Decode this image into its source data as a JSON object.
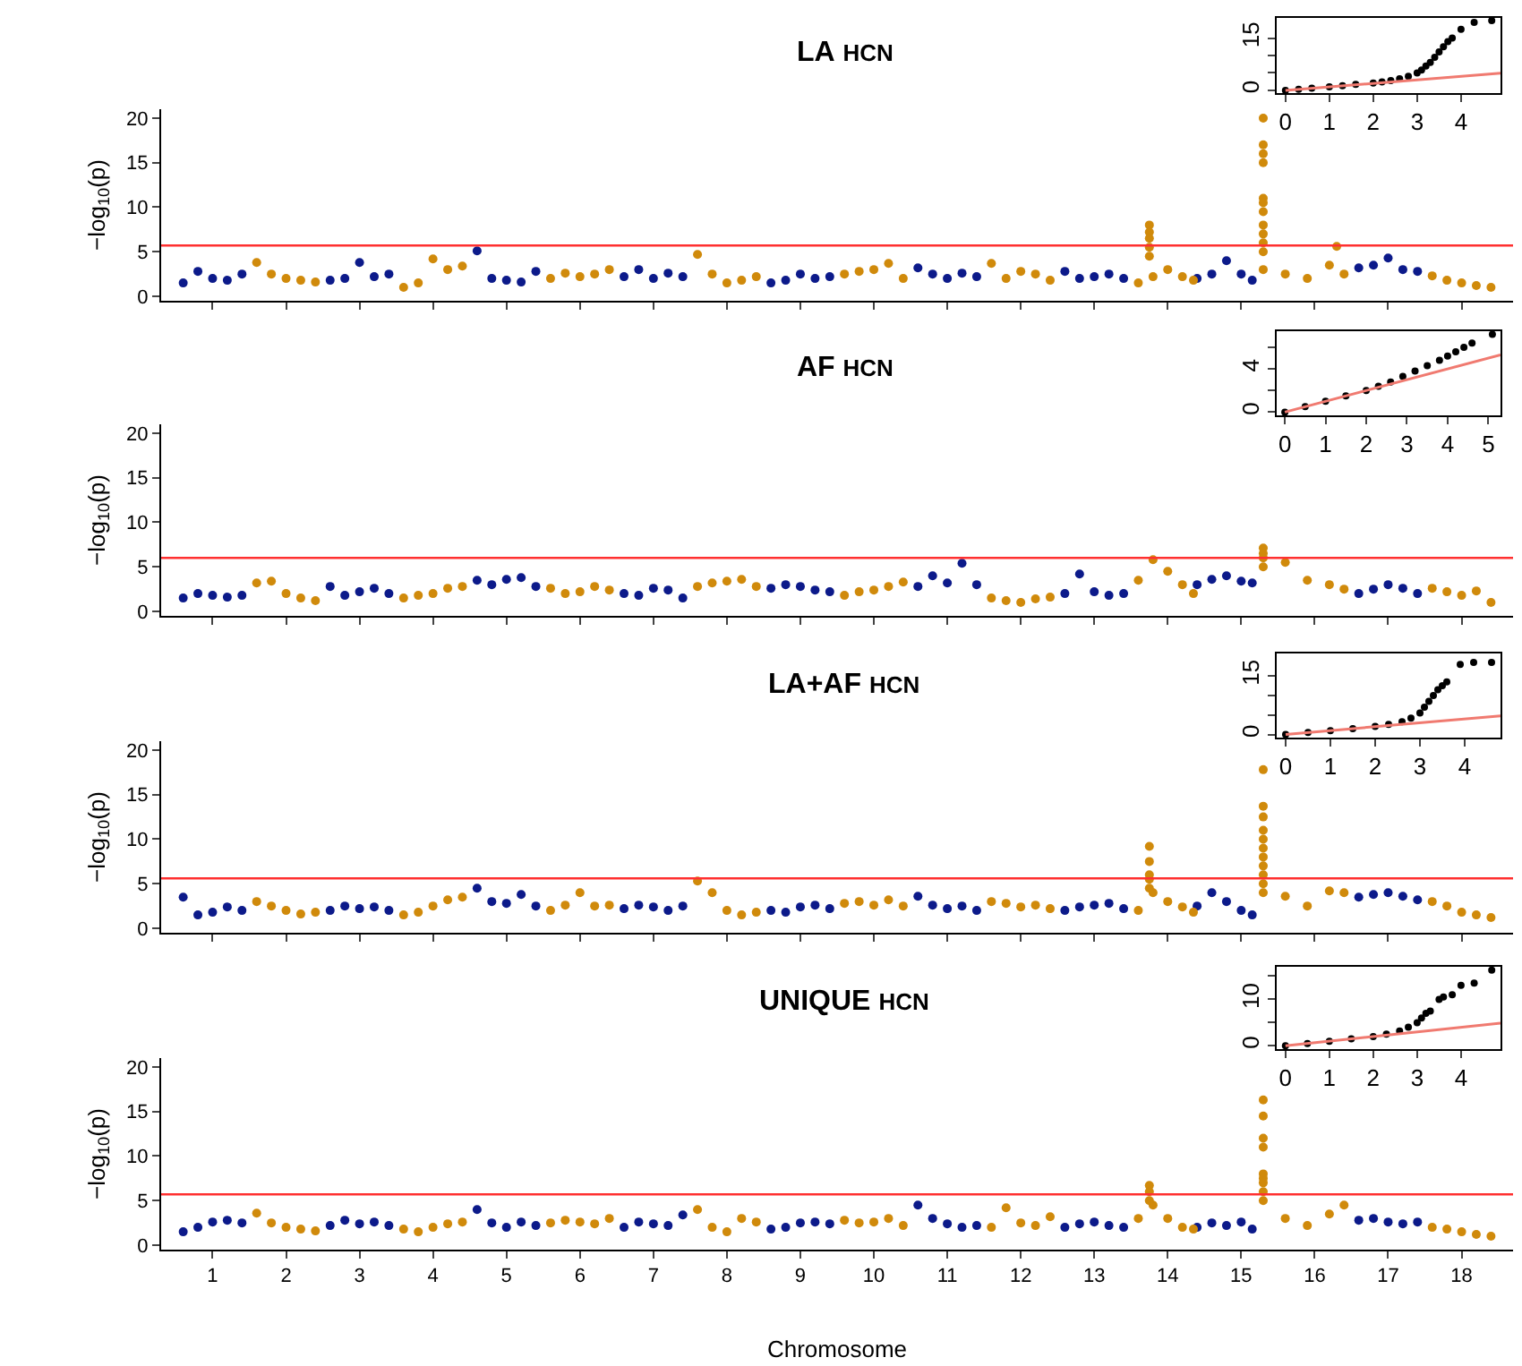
{
  "chart_data": [
    {
      "type": "scatter",
      "title": "LA HCN",
      "ylabel": "−log$_{10}$(p)",
      "xlim": [
        0.3,
        18.7
      ],
      "ylim": [
        -0.5,
        21
      ],
      "yticks": [
        0,
        5,
        10,
        15,
        20
      ],
      "xticks": [
        1,
        2,
        3,
        4,
        5,
        6,
        7,
        8,
        9,
        10,
        11,
        12,
        13,
        14,
        15,
        16,
        17,
        18
      ],
      "tick_labels": "y",
      "marker": "circle",
      "ref_lines": [
        {
          "axis": "y",
          "value": 5.7,
          "color": "#ff3030"
        }
      ],
      "series": [
        {
          "color": "#0c1a8a",
          "x": [
            0.6,
            0.8,
            1,
            1.2,
            1.4,
            2.6,
            2.8,
            3,
            3.2,
            3.4,
            4.6,
            4.8,
            5,
            5.2,
            5.4,
            6.6,
            6.8,
            7,
            7.2,
            7.4,
            8.6,
            8.8,
            9,
            9.2,
            9.4,
            10.6,
            10.8,
            11,
            11.2,
            11.4,
            12.6,
            12.8,
            13,
            13.2,
            13.4,
            14.4,
            14.6,
            14.8,
            15,
            15.15,
            16.6,
            16.8,
            17,
            17.2,
            17.4
          ],
          "values": [
            1.5,
            2.8,
            2.0,
            1.8,
            2.5,
            1.8,
            2.0,
            3.8,
            2.2,
            2.5,
            5.1,
            2.0,
            1.8,
            1.6,
            2.8,
            2.2,
            3.0,
            2.0,
            2.6,
            2.2,
            1.5,
            1.8,
            2.5,
            2.0,
            2.2,
            3.2,
            2.5,
            2.0,
            2.6,
            2.2,
            2.8,
            2.0,
            2.2,
            2.5,
            2.0,
            2.0,
            2.5,
            4.0,
            2.5,
            1.8,
            3.2,
            3.5,
            4.3,
            3.0,
            2.8
          ]
        },
        {
          "color": "#d08a0b",
          "x": [
            1.6,
            1.8,
            2,
            2.2,
            2.4,
            3.6,
            3.8,
            4,
            4.2,
            4.4,
            5.6,
            5.8,
            6,
            6.2,
            6.4,
            7.6,
            7.8,
            8,
            8.2,
            8.4,
            9.6,
            9.8,
            10,
            10.2,
            10.4,
            11.6,
            11.8,
            12,
            12.2,
            12.4,
            13.6,
            13.8,
            14,
            14.2,
            14.35,
            15.3,
            15.6,
            15.9,
            16.2,
            16.4,
            17.6,
            17.8,
            18,
            18.2,
            18.4,
            13.75,
            13.75,
            13.75,
            13.75,
            13.75,
            15.3,
            15.3,
            15.3,
            15.3,
            15.3,
            15.3,
            15.3,
            15.3,
            15.3,
            15.3,
            15.3,
            16.3
          ],
          "values": [
            3.8,
            2.5,
            2.0,
            1.8,
            1.6,
            1.0,
            1.5,
            4.2,
            3.0,
            3.4,
            2.0,
            2.6,
            2.2,
            2.5,
            3.0,
            4.7,
            2.5,
            1.5,
            1.8,
            2.2,
            2.5,
            2.8,
            3.0,
            3.7,
            2.0,
            3.7,
            2.0,
            2.8,
            2.5,
            1.8,
            1.5,
            2.2,
            3.0,
            2.2,
            1.8,
            3.0,
            2.5,
            2.0,
            3.5,
            2.5,
            2.3,
            1.8,
            1.5,
            1.2,
            1.0,
            8.0,
            7.2,
            6.5,
            5.5,
            4.5,
            20,
            17,
            16,
            15,
            11,
            10.5,
            9.5,
            8,
            7,
            6,
            5,
            5.6
          ]
        }
      ]
    },
    {
      "type": "scatter",
      "xlim": [
        -0.2,
        4.9
      ],
      "ylim": [
        -0.8,
        20.8
      ],
      "xticks": [
        0,
        1,
        2,
        3,
        4
      ],
      "yticks": [
        0,
        {
          "value": 5,
          "label": null
        },
        {
          "value": 10,
          "label": null
        },
        15
      ],
      "series": [
        {
          "color": "#000000",
          "marker": "circle",
          "x": [
            0,
            0.3,
            0.6,
            1,
            1.3,
            1.6,
            2,
            2.2,
            2.4,
            2.6,
            2.8,
            3,
            3.1,
            3.2,
            3.3,
            3.4,
            3.5,
            3.6,
            3.7,
            3.8,
            4.0,
            4.3,
            4.7
          ],
          "values": [
            0,
            0.3,
            0.6,
            1,
            1.3,
            1.7,
            2.1,
            2.4,
            2.8,
            3.3,
            4,
            5,
            5.8,
            7,
            8,
            9.5,
            11,
            12.5,
            14,
            15,
            17.5,
            19.5,
            20
          ]
        },
        {
          "type": "line",
          "color": "#f07a70",
          "marker": "none",
          "line_style": "solid",
          "x": [
            0,
            4.9
          ],
          "values": [
            0,
            4.9
          ]
        }
      ]
    },
    {
      "type": "scatter",
      "title": "AF HCN",
      "ylabel": "−log$_{10}$(p)",
      "xlim": [
        0.3,
        18.7
      ],
      "ylim": [
        -0.5,
        21
      ],
      "yticks": [
        0,
        5,
        10,
        15,
        20
      ],
      "xticks": [
        1,
        2,
        3,
        4,
        5,
        6,
        7,
        8,
        9,
        10,
        11,
        12,
        13,
        14,
        15,
        16,
        17,
        18
      ],
      "tick_labels": "y",
      "marker": "circle",
      "ref_lines": [
        {
          "axis": "y",
          "value": 6.0,
          "color": "#ff3030"
        }
      ],
      "series": [
        {
          "color": "#0c1a8a",
          "x": [
            0.6,
            0.8,
            1,
            1.2,
            1.4,
            2.6,
            2.8,
            3,
            3.2,
            3.4,
            4.6,
            4.8,
            5,
            5.2,
            5.4,
            6.6,
            6.8,
            7,
            7.2,
            7.4,
            8.6,
            8.8,
            9,
            9.2,
            9.4,
            10.6,
            10.8,
            11,
            11.2,
            11.4,
            12.6,
            12.8,
            13,
            13.2,
            13.4,
            14.4,
            14.6,
            14.8,
            15,
            15.15,
            16.6,
            16.8,
            17,
            17.2,
            17.4
          ],
          "values": [
            1.5,
            2.0,
            1.8,
            1.6,
            1.8,
            2.8,
            1.8,
            2.2,
            2.6,
            2.0,
            3.5,
            3.0,
            3.6,
            3.8,
            2.8,
            2.0,
            1.8,
            2.6,
            2.4,
            1.5,
            2.6,
            3.0,
            2.8,
            2.4,
            2.2,
            2.8,
            4.0,
            3.2,
            5.4,
            3.0,
            2.0,
            4.2,
            2.2,
            1.8,
            2.0,
            3.0,
            3.6,
            4.0,
            3.4,
            3.2,
            2.0,
            2.5,
            3.0,
            2.6,
            2.0
          ]
        },
        {
          "color": "#d08a0b",
          "x": [
            1.6,
            1.8,
            2,
            2.2,
            2.4,
            3.6,
            3.8,
            4,
            4.2,
            4.4,
            5.6,
            5.8,
            6,
            6.2,
            6.4,
            7.6,
            7.8,
            8,
            8.2,
            8.4,
            9.6,
            9.8,
            10,
            10.2,
            10.4,
            11.6,
            11.8,
            12,
            12.2,
            12.4,
            13.6,
            13.8,
            14,
            14.2,
            14.35,
            15.3,
            15.6,
            15.9,
            16.2,
            16.4,
            17.6,
            17.8,
            18,
            18.2,
            18.4,
            15.3,
            15.3,
            15.3
          ],
          "values": [
            3.2,
            3.4,
            2.0,
            1.5,
            1.2,
            1.5,
            1.8,
            2.0,
            2.6,
            2.8,
            2.6,
            2.0,
            2.2,
            2.8,
            2.4,
            2.8,
            3.2,
            3.4,
            3.6,
            2.8,
            1.8,
            2.2,
            2.4,
            2.8,
            3.3,
            1.5,
            1.2,
            1.0,
            1.4,
            1.6,
            3.5,
            5.8,
            4.5,
            3.0,
            2.0,
            7.1,
            5.5,
            3.5,
            3.0,
            2.5,
            2.6,
            2.2,
            1.8,
            2.3,
            1.0,
            6.5,
            6.0,
            5.0
          ]
        }
      ]
    },
    {
      "type": "scatter",
      "xlim": [
        -0.2,
        5.3
      ],
      "ylim": [
        -0.3,
        7.5
      ],
      "xticks": [
        0,
        1,
        2,
        3,
        4,
        5
      ],
      "yticks": [
        0,
        {
          "value": 2,
          "label": null
        },
        4,
        {
          "value": 6,
          "label": null
        }
      ],
      "series": [
        {
          "color": "#000000",
          "marker": "circle",
          "x": [
            0,
            0.5,
            1,
            1.5,
            2,
            2.3,
            2.6,
            2.9,
            3.2,
            3.5,
            3.8,
            4.0,
            4.2,
            4.4,
            4.6,
            5.1
          ],
          "values": [
            0,
            0.5,
            1,
            1.5,
            2,
            2.4,
            2.8,
            3.3,
            3.8,
            4.3,
            4.8,
            5.2,
            5.6,
            6.0,
            6.4,
            7.2
          ]
        },
        {
          "type": "line",
          "color": "#f07a70",
          "marker": "none",
          "line_style": "solid",
          "x": [
            0,
            5.3
          ],
          "values": [
            0,
            5.3
          ]
        }
      ]
    },
    {
      "type": "scatter",
      "title": "LA+AF HCN",
      "ylabel": "−log$_{10}$(p)",
      "xlim": [
        0.3,
        18.7
      ],
      "ylim": [
        -0.5,
        21
      ],
      "yticks": [
        0,
        5,
        10,
        15,
        20
      ],
      "xticks": [
        1,
        2,
        3,
        4,
        5,
        6,
        7,
        8,
        9,
        10,
        11,
        12,
        13,
        14,
        15,
        16,
        17,
        18
      ],
      "tick_labels": "y",
      "marker": "circle",
      "ref_lines": [
        {
          "axis": "y",
          "value": 5.6,
          "color": "#ff3030"
        }
      ],
      "series": [
        {
          "color": "#0c1a8a",
          "x": [
            0.6,
            0.8,
            1,
            1.2,
            1.4,
            2.6,
            2.8,
            3,
            3.2,
            3.4,
            4.6,
            4.8,
            5,
            5.2,
            5.4,
            6.6,
            6.8,
            7,
            7.2,
            7.4,
            8.6,
            8.8,
            9,
            9.2,
            9.4,
            10.6,
            10.8,
            11,
            11.2,
            11.4,
            12.6,
            12.8,
            13,
            13.2,
            13.4,
            14.4,
            14.6,
            14.8,
            15,
            15.15,
            16.6,
            16.8,
            17,
            17.2,
            17.4
          ],
          "values": [
            3.5,
            1.5,
            1.8,
            2.4,
            2.0,
            2.0,
            2.5,
            2.2,
            2.4,
            2.0,
            4.5,
            3.0,
            2.8,
            3.8,
            2.5,
            2.2,
            2.6,
            2.4,
            2.0,
            2.5,
            2.0,
            1.8,
            2.4,
            2.6,
            2.2,
            3.6,
            2.6,
            2.2,
            2.5,
            2.0,
            2.0,
            2.4,
            2.6,
            2.8,
            2.2,
            2.5,
            4.0,
            3.0,
            2.0,
            1.5,
            3.5,
            3.8,
            4.0,
            3.6,
            3.2
          ]
        },
        {
          "color": "#d08a0b",
          "x": [
            1.6,
            1.8,
            2,
            2.2,
            2.4,
            3.6,
            3.8,
            4,
            4.2,
            4.4,
            5.6,
            5.8,
            6,
            6.2,
            6.4,
            7.6,
            7.8,
            8,
            8.2,
            8.4,
            9.6,
            9.8,
            10,
            10.2,
            10.4,
            11.6,
            11.8,
            12,
            12.2,
            12.4,
            13.6,
            13.8,
            14,
            14.2,
            14.35,
            15.3,
            15.6,
            15.9,
            16.2,
            16.4,
            17.6,
            17.8,
            18,
            18.2,
            18.4,
            13.75,
            13.75,
            13.75,
            13.75,
            13.75,
            15.3,
            15.3,
            15.3,
            15.3,
            15.3,
            15.3,
            15.3,
            15.3,
            15.3,
            15.3
          ],
          "values": [
            3.0,
            2.5,
            2.0,
            1.6,
            1.8,
            1.5,
            1.8,
            2.5,
            3.2,
            3.5,
            2.0,
            2.6,
            4.0,
            2.5,
            2.6,
            5.3,
            4.0,
            2.0,
            1.5,
            1.8,
            2.8,
            3.0,
            2.6,
            3.2,
            2.5,
            3.0,
            2.8,
            2.4,
            2.6,
            2.2,
            2.0,
            4.0,
            3.0,
            2.4,
            1.8,
            4.0,
            3.6,
            2.5,
            4.2,
            4.0,
            3.0,
            2.5,
            1.8,
            1.5,
            1.2,
            9.2,
            7.5,
            6.0,
            5.5,
            4.5,
            17.8,
            13.7,
            12.5,
            11,
            10,
            9,
            8,
            7,
            6,
            5
          ]
        }
      ]
    },
    {
      "type": "scatter",
      "xlim": [
        -0.2,
        4.8
      ],
      "ylim": [
        -0.8,
        20.8
      ],
      "xticks": [
        0,
        1,
        2,
        3,
        4
      ],
      "yticks": [
        0,
        {
          "value": 5,
          "label": null
        },
        {
          "value": 10,
          "label": null
        },
        15
      ],
      "series": [
        {
          "color": "#000000",
          "marker": "circle",
          "x": [
            0,
            0.5,
            1,
            1.5,
            2,
            2.3,
            2.6,
            2.8,
            3,
            3.1,
            3.2,
            3.3,
            3.4,
            3.5,
            3.6,
            3.9,
            4.2,
            4.6
          ],
          "values": [
            0,
            0.5,
            1,
            1.5,
            2.1,
            2.6,
            3.3,
            4.2,
            5.5,
            7,
            8.5,
            10,
            11.5,
            12.5,
            13.5,
            18,
            18.5,
            18.5
          ]
        },
        {
          "type": "line",
          "color": "#f07a70",
          "marker": "none",
          "line_style": "solid",
          "x": [
            0,
            4.8
          ],
          "values": [
            0,
            4.8
          ]
        }
      ]
    },
    {
      "type": "scatter",
      "title": "UNIQUE HCN",
      "ylabel": "−log$_{10}$(p)",
      "xlabel": "Chromosome",
      "xlim": [
        0.3,
        18.7
      ],
      "ylim": [
        -0.5,
        21
      ],
      "yticks": [
        0,
        5,
        10,
        15,
        20
      ],
      "xticks": [
        1,
        2,
        3,
        4,
        5,
        6,
        7,
        8,
        9,
        10,
        11,
        12,
        13,
        14,
        15,
        16,
        17,
        18
      ],
      "marker": "circle",
      "ref_lines": [
        {
          "axis": "y",
          "value": 5.7,
          "color": "#ff3030"
        }
      ],
      "series": [
        {
          "color": "#0c1a8a",
          "x": [
            0.6,
            0.8,
            1,
            1.2,
            1.4,
            2.6,
            2.8,
            3,
            3.2,
            3.4,
            4.6,
            4.8,
            5,
            5.2,
            5.4,
            6.6,
            6.8,
            7,
            7.2,
            7.4,
            8.6,
            8.8,
            9,
            9.2,
            9.4,
            10.6,
            10.8,
            11,
            11.2,
            11.4,
            12.6,
            12.8,
            13,
            13.2,
            13.4,
            14.4,
            14.6,
            14.8,
            15,
            15.15,
            16.6,
            16.8,
            17,
            17.2,
            17.4
          ],
          "values": [
            1.5,
            2.0,
            2.6,
            2.8,
            2.5,
            2.2,
            2.8,
            2.4,
            2.6,
            2.2,
            4.0,
            2.5,
            2.0,
            2.6,
            2.2,
            2.0,
            2.6,
            2.4,
            2.2,
            3.4,
            1.8,
            2.0,
            2.5,
            2.6,
            2.4,
            4.5,
            3.0,
            2.4,
            2.0,
            2.2,
            2.0,
            2.4,
            2.6,
            2.2,
            2.0,
            2.0,
            2.5,
            2.2,
            2.6,
            1.8,
            2.8,
            3.0,
            2.6,
            2.4,
            2.6
          ]
        },
        {
          "color": "#d08a0b",
          "x": [
            1.6,
            1.8,
            2,
            2.2,
            2.4,
            3.6,
            3.8,
            4,
            4.2,
            4.4,
            5.6,
            5.8,
            6,
            6.2,
            6.4,
            7.6,
            7.8,
            8,
            8.2,
            8.4,
            9.6,
            9.8,
            10,
            10.2,
            10.4,
            11.6,
            11.8,
            12,
            12.2,
            12.4,
            13.6,
            13.8,
            14,
            14.2,
            14.35,
            15.3,
            15.6,
            15.9,
            16.2,
            16.4,
            17.6,
            17.8,
            18,
            18.2,
            18.4,
            13.75,
            13.75,
            13.75,
            15.3,
            15.3,
            15.3,
            15.3,
            15.3,
            15.3,
            15.3,
            15.3
          ],
          "values": [
            3.6,
            2.5,
            2.0,
            1.8,
            1.6,
            1.8,
            1.5,
            2.0,
            2.4,
            2.6,
            2.5,
            2.8,
            2.6,
            2.4,
            3.0,
            4.0,
            2.0,
            1.5,
            3.0,
            2.6,
            2.8,
            2.5,
            2.6,
            3.0,
            2.2,
            2.0,
            4.2,
            2.5,
            2.2,
            3.2,
            3.0,
            4.5,
            3.0,
            2.0,
            1.8,
            16.3,
            3.0,
            2.2,
            3.5,
            4.5,
            2.0,
            1.8,
            1.5,
            1.2,
            1.0,
            6.7,
            6.0,
            5.0,
            14.5,
            12,
            11,
            8,
            7.5,
            7,
            6,
            5
          ]
        }
      ]
    },
    {
      "type": "scatter",
      "xlim": [
        -0.2,
        4.9
      ],
      "ylim": [
        -0.7,
        17
      ],
      "xticks": [
        0,
        1,
        2,
        3,
        4
      ],
      "yticks": [
        0,
        {
          "value": 5,
          "label": null
        },
        10,
        {
          "value": 15,
          "label": null
        }
      ],
      "series": [
        {
          "color": "#000000",
          "marker": "circle",
          "x": [
            0,
            0.5,
            1,
            1.5,
            2,
            2.3,
            2.6,
            2.8,
            3,
            3.1,
            3.2,
            3.3,
            3.5,
            3.6,
            3.8,
            4.0,
            4.3,
            4.7
          ],
          "values": [
            0,
            0.5,
            1,
            1.5,
            2,
            2.5,
            3.2,
            4,
            5,
            6,
            7,
            7.5,
            10,
            10.5,
            11,
            13,
            13.5,
            16.3
          ]
        },
        {
          "type": "line",
          "color": "#f07a70",
          "marker": "none",
          "line_style": "solid",
          "x": [
            0,
            4.9
          ],
          "values": [
            0,
            4.9
          ]
        }
      ]
    }
  ]
}
